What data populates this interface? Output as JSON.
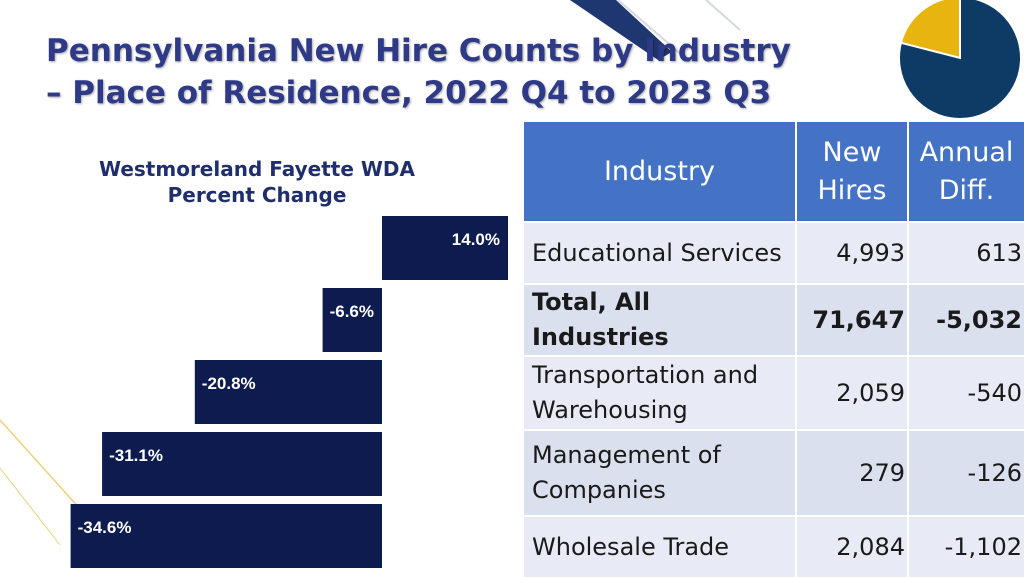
{
  "title": {
    "line1": "Pennsylvania New Hire Counts by Industry",
    "line2": "– Place of Residence, 2022 Q4 to 2023 Q3"
  },
  "colors": {
    "title": "#2e3a87",
    "bar": "#0d1b4f",
    "header": "#4472c4",
    "row_light": "#e8ebf5",
    "row_dark": "#dbe0ef",
    "pie_gold": "#e8b40f",
    "pie_navy": "#0e3b66"
  },
  "chart_data": {
    "type": "bar",
    "orientation": "horizontal",
    "title": "Westmoreland Fayette WDA Percent Change",
    "title_lines": [
      "Westmoreland Fayette WDA",
      "Percent Change"
    ],
    "categories": [
      "Educational Services",
      "Total, All Industries",
      "Transportation and Warehousing",
      "Management of Companies",
      "Wholesale Trade"
    ],
    "values": [
      14.0,
      -6.6,
      -20.8,
      -31.1,
      -34.6
    ],
    "labels": [
      "14.0%",
      "-6.6%",
      "-20.8%",
      "-31.1%",
      "-34.6%"
    ],
    "unit": "%",
    "xlim": [
      -34.6,
      14.0
    ],
    "grid": false,
    "legend": "none"
  },
  "pie": {
    "values": [
      21,
      79
    ],
    "description": "decorative pie icon"
  },
  "table": {
    "headers": {
      "industry": "Industry",
      "new_hires": [
        "New",
        "Hires"
      ],
      "annual_diff": [
        "Annual",
        "Diff."
      ]
    },
    "rows": [
      {
        "industry": [
          "Educational Services"
        ],
        "new_hires": "4,993",
        "annual_diff": "613",
        "bold": false
      },
      {
        "industry": [
          "Total, All Industries"
        ],
        "new_hires": "71,647",
        "annual_diff": "-5,032",
        "bold": true
      },
      {
        "industry": [
          "Transportation and",
          "Warehousing"
        ],
        "new_hires": "2,059",
        "annual_diff": "-540",
        "bold": false
      },
      {
        "industry": [
          "Management of",
          "Companies"
        ],
        "new_hires": "279",
        "annual_diff": "-126",
        "bold": false
      },
      {
        "industry": [
          "Wholesale Trade"
        ],
        "new_hires": "2,084",
        "annual_diff": "-1,102",
        "bold": false
      }
    ]
  }
}
